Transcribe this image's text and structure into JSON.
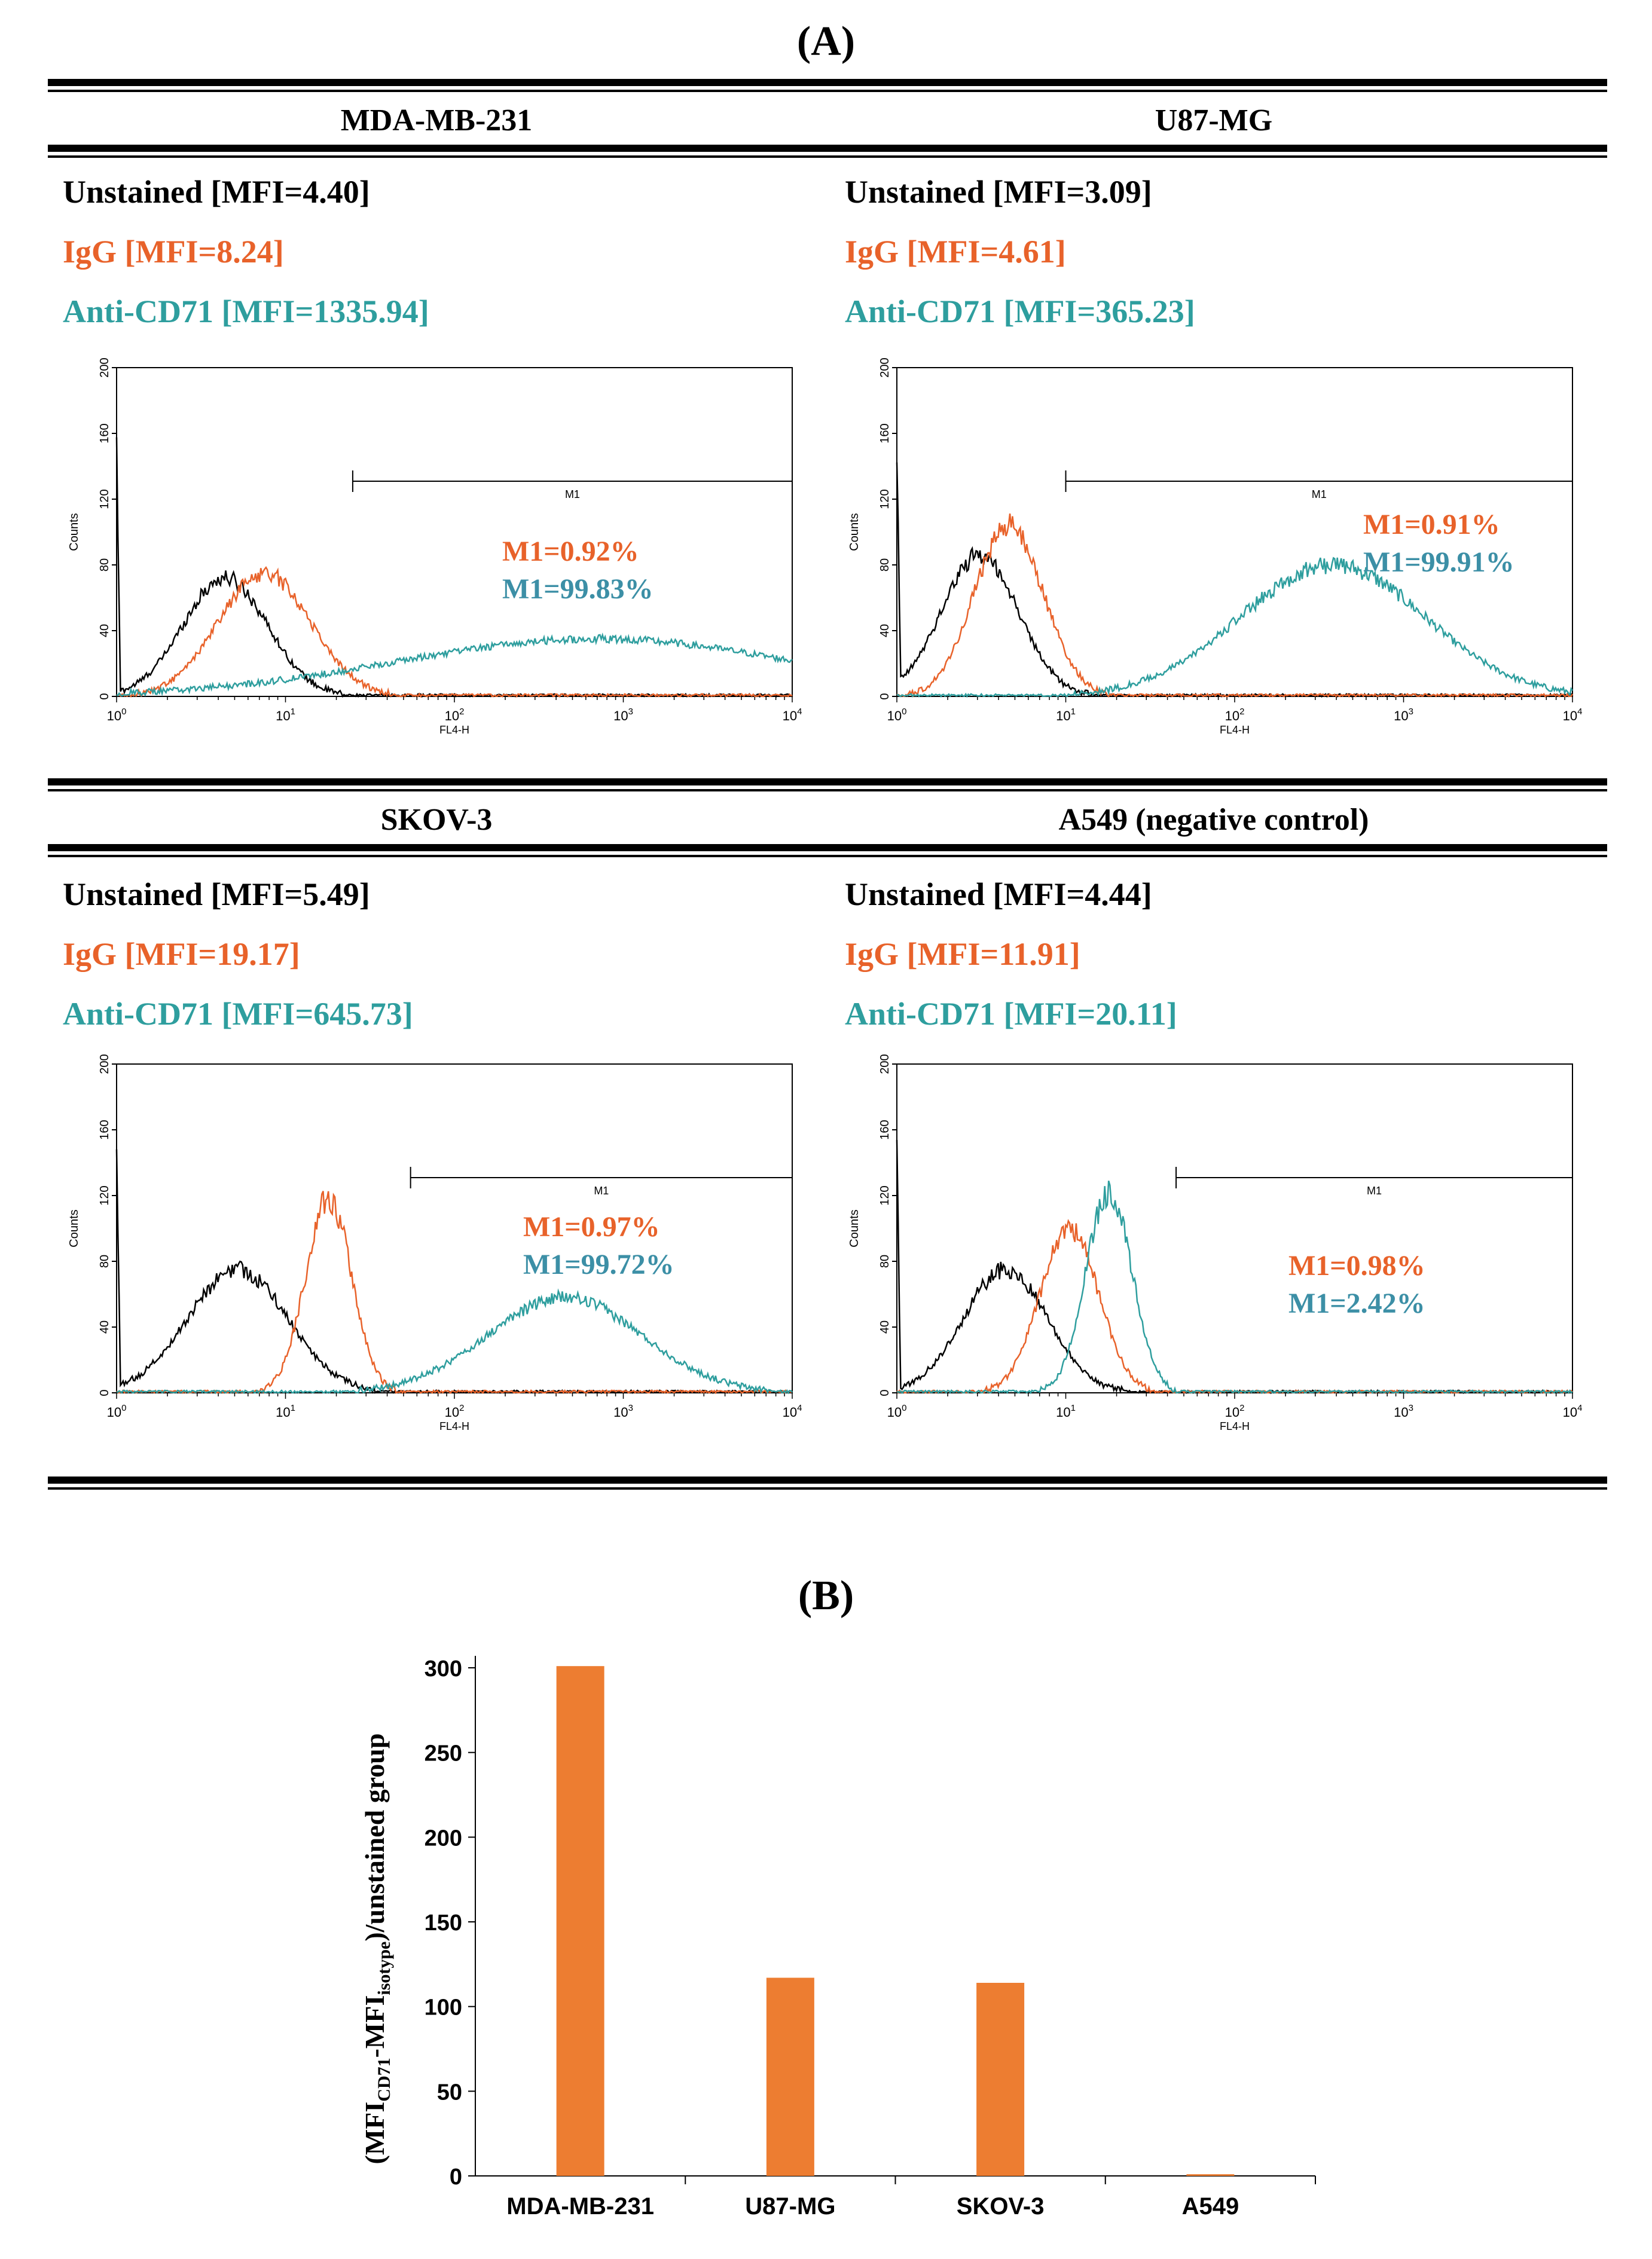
{
  "panel_a_label": "(A)",
  "panel_b_label": "(B)",
  "colors": {
    "unstained": "#000000",
    "igg": "#E8622A",
    "anti_cd71": "#2E9E9E",
    "bar": "#ED7D31",
    "m1_anti": "#3C8FA6"
  },
  "histograms": [
    {
      "cell_line": "MDA-MB-231",
      "legend": {
        "unstained": "Unstained [MFI=4.40]",
        "igg": "IgG [MFI=8.24]",
        "anti": "Anti-CD71 [MFI=1335.94]"
      },
      "m1_igg": "M1=0.92%",
      "m1_anti": "M1=99.83%",
      "m1_gate_start": 25,
      "peaks": {
        "unstained": [
          4.4,
          72,
          0.55
        ],
        "igg": [
          7.5,
          75,
          0.6
        ],
        "anti": [
          700,
          35,
          2.6
        ]
      }
    },
    {
      "cell_line": "U87-MG",
      "legend": {
        "unstained": "Unstained [MFI=3.09]",
        "igg": "IgG [MFI=4.61]",
        "anti": "Anti-CD71 [MFI=365.23]"
      },
      "m1_igg": "M1=0.91%",
      "m1_anti": "M1=99.91%",
      "m1_gate_start": 10,
      "peaks": {
        "unstained": [
          3.1,
          86,
          0.5
        ],
        "igg": [
          4.6,
          104,
          0.45
        ],
        "anti": [
          380,
          80,
          1.2
        ]
      }
    },
    {
      "cell_line": "SKOV-3",
      "legend": {
        "unstained": "Unstained [MFI=5.49]",
        "igg": "IgG [MFI=19.17]",
        "anti": "Anti-CD71 [MFI=645.73]"
      },
      "m1_igg": "M1=0.97%",
      "m1_anti": "M1=99.72%",
      "m1_gate_start": 55,
      "peaks": {
        "unstained": [
          5.2,
          75,
          0.65
        ],
        "igg": [
          18,
          118,
          0.3
        ],
        "anti": [
          450,
          58,
          1.0
        ]
      }
    },
    {
      "cell_line": "A549 (negative control)",
      "legend": {
        "unstained": "Unstained [MFI=4.44]",
        "igg": "IgG [MFI=11.91]",
        "anti": "Anti-CD71 [MFI=20.11]"
      },
      "m1_igg": "M1=0.98%",
      "m1_anti": "M1=2.42%",
      "m1_gate_start": 45,
      "peaks": {
        "unstained": [
          4.4,
          75,
          0.55
        ],
        "igg": [
          10.5,
          100,
          0.38
        ],
        "anti": [
          18,
          122,
          0.3
        ]
      }
    }
  ],
  "histogram_axes": {
    "xlabel": "FL4-H",
    "ylabel": "Counts",
    "gate_label": "M1",
    "xlim": [
      1,
      10000
    ],
    "ylim": [
      0,
      200
    ],
    "x_ticks": [
      {
        "base": "10",
        "exp": "0"
      },
      {
        "base": "10",
        "exp": "1"
      },
      {
        "base": "10",
        "exp": "2"
      },
      {
        "base": "10",
        "exp": "3"
      },
      {
        "base": "10",
        "exp": "4"
      }
    ],
    "y_ticks": [
      "0",
      "40",
      "80",
      "120",
      "160",
      "200"
    ]
  },
  "chart_data": {
    "type": "bar",
    "categories": [
      "MDA-MB-231",
      "U87-MG",
      "SKOV-3",
      "A549"
    ],
    "values": [
      301,
      117,
      114,
      1
    ],
    "ylim": [
      0,
      300
    ],
    "y_ticks": [
      "0",
      "50",
      "100",
      "150",
      "200",
      "250",
      "300"
    ],
    "ylabel": "(MFI",
    "ylabel_sub1": "CD71",
    "ylabel_mid": "-MFI",
    "ylabel_sub2": "isotype",
    "ylabel_tail": ")/unstained group",
    "xlabel": "",
    "title": ""
  }
}
